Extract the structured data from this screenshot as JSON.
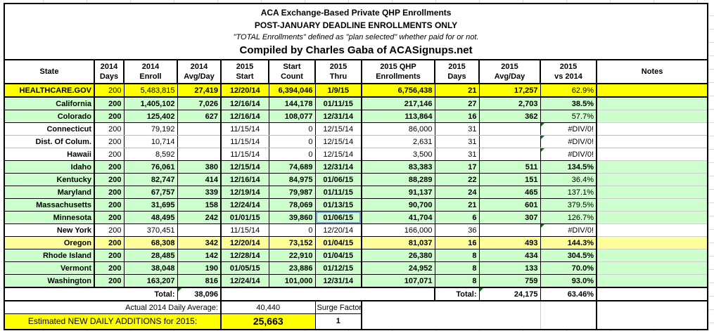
{
  "title": {
    "line1": "ACA Exchange-Based Private QHP Enrollments",
    "line2": "POST-JANUARY DEADLINE ENROLLMENTS ONLY",
    "line3": "\"TOTAL Enrollments\" defined as \"plan selected\" whether paid for or not.",
    "line4": "Compiled by Charles Gaba of ACASignups.net"
  },
  "colors": {
    "row_yellow": "#ffff00",
    "row_green": "#ccffcc",
    "row_light_yellow": "#ffff99",
    "selection_border": "#6fa8dc",
    "error_triangle": "#007b00"
  },
  "table": {
    "columns": [
      {
        "line1": "State",
        "line2": ""
      },
      {
        "line1": "2014",
        "line2": "Days"
      },
      {
        "line1": "2014",
        "line2": "Enroll"
      },
      {
        "line1": "2014",
        "line2": "Avg/Day"
      },
      {
        "line1": "2015",
        "line2": "Start"
      },
      {
        "line1": "Start",
        "line2": "Count"
      },
      {
        "line1": "2015",
        "line2": "Thru"
      },
      {
        "line1": "2015 QHP",
        "line2": "Enrollments"
      },
      {
        "line1": "2015",
        "line2": "Days"
      },
      {
        "line1": "2015",
        "line2": "Avg/Day"
      },
      {
        "line1": "2015",
        "line2": "vs 2014"
      },
      {
        "line1": "Notes",
        "line2": ""
      }
    ],
    "column_aligns": [
      "r",
      "r",
      "r",
      "r",
      "c",
      "r",
      "c",
      "r",
      "r",
      "r",
      "r",
      "l"
    ],
    "rows": [
      {
        "name": "healthcare-gov",
        "bg": "#ffff00",
        "thick_bottom": 1,
        "cells": [
          {
            "v": "HEALTHCARE.GOV",
            "b": 1
          },
          {
            "v": "200"
          },
          {
            "v": "5,483,815"
          },
          {
            "v": "27,419",
            "b": 1
          },
          {
            "v": "12/20/14",
            "b": 1
          },
          {
            "v": "6,394,046",
            "b": 1
          },
          {
            "v": "1/9/15",
            "b": 1
          },
          {
            "v": "6,756,438",
            "b": 1
          },
          {
            "v": "21",
            "b": 1
          },
          {
            "v": "17,257",
            "b": 1
          },
          {
            "v": "62.9%"
          },
          {
            "v": ""
          }
        ]
      },
      {
        "name": "california",
        "bg": "#ccffcc",
        "cells": [
          {
            "v": "California",
            "b": 1
          },
          {
            "v": "200",
            "b": 1
          },
          {
            "v": "1,405,102",
            "b": 1
          },
          {
            "v": "7,026",
            "b": 1
          },
          {
            "v": "12/16/14",
            "b": 1
          },
          {
            "v": "144,178",
            "b": 1
          },
          {
            "v": "01/11/15",
            "b": 1
          },
          {
            "v": "217,146",
            "b": 1
          },
          {
            "v": "27",
            "b": 1
          },
          {
            "v": "2,703",
            "b": 1
          },
          {
            "v": "38.5%",
            "b": 1
          },
          {
            "v": ""
          }
        ]
      },
      {
        "name": "colorado",
        "bg": "#ccffcc",
        "cells": [
          {
            "v": "Colorado",
            "b": 1
          },
          {
            "v": "200",
            "b": 1
          },
          {
            "v": "125,402",
            "b": 1
          },
          {
            "v": "627",
            "b": 1
          },
          {
            "v": "12/16/14",
            "b": 1
          },
          {
            "v": "108,077",
            "b": 1
          },
          {
            "v": "12/31/14",
            "b": 1
          },
          {
            "v": "113,864",
            "b": 1
          },
          {
            "v": "16",
            "b": 1
          },
          {
            "v": "362",
            "b": 1
          },
          {
            "v": "57.7%"
          },
          {
            "v": ""
          }
        ]
      },
      {
        "name": "connecticut",
        "bg": "#ffffff",
        "gray_bottom": 1,
        "cells": [
          {
            "v": "Connecticut",
            "b": 1
          },
          {
            "v": "200"
          },
          {
            "v": "79,192"
          },
          {
            "v": ""
          },
          {
            "v": "11/15/14"
          },
          {
            "v": "0"
          },
          {
            "v": "12/15/14"
          },
          {
            "v": "86,000"
          },
          {
            "v": "31"
          },
          {
            "v": ""
          },
          {
            "v": "#DIV/0!",
            "t": 1
          },
          {
            "v": ""
          }
        ]
      },
      {
        "name": "dist-of-colum",
        "bg": "#ffffff",
        "gray_bottom": 1,
        "cells": [
          {
            "v": "Dist. Of Colum.",
            "b": 1
          },
          {
            "v": "200"
          },
          {
            "v": "10,714"
          },
          {
            "v": ""
          },
          {
            "v": "11/15/14"
          },
          {
            "v": "0"
          },
          {
            "v": "12/15/14"
          },
          {
            "v": "2,631"
          },
          {
            "v": "31"
          },
          {
            "v": ""
          },
          {
            "v": "#DIV/0!",
            "t": 1
          },
          {
            "v": ""
          }
        ]
      },
      {
        "name": "hawaii",
        "bg": "#ffffff",
        "cells": [
          {
            "v": "Hawaii",
            "b": 1
          },
          {
            "v": "200"
          },
          {
            "v": "8,592"
          },
          {
            "v": ""
          },
          {
            "v": "11/15/14"
          },
          {
            "v": "0"
          },
          {
            "v": "12/15/14"
          },
          {
            "v": "3,500"
          },
          {
            "v": "31"
          },
          {
            "v": ""
          },
          {
            "v": "#DIV/0!",
            "t": 1
          },
          {
            "v": ""
          }
        ]
      },
      {
        "name": "idaho",
        "bg": "#ccffcc",
        "cells": [
          {
            "v": "Idaho",
            "b": 1
          },
          {
            "v": "200",
            "b": 1
          },
          {
            "v": "76,061",
            "b": 1
          },
          {
            "v": "380",
            "b": 1
          },
          {
            "v": "12/15/14",
            "b": 1
          },
          {
            "v": "74,689",
            "b": 1
          },
          {
            "v": "12/31/14",
            "b": 1
          },
          {
            "v": "83,383",
            "b": 1
          },
          {
            "v": "17",
            "b": 1
          },
          {
            "v": "511",
            "b": 1
          },
          {
            "v": "134.5%",
            "b": 1
          },
          {
            "v": ""
          }
        ]
      },
      {
        "name": "kentucky",
        "bg": "#ccffcc",
        "cells": [
          {
            "v": "Kentucky",
            "b": 1
          },
          {
            "v": "200",
            "b": 1
          },
          {
            "v": "82,747",
            "b": 1
          },
          {
            "v": "414",
            "b": 1
          },
          {
            "v": "12/16/14",
            "b": 1
          },
          {
            "v": "84,975",
            "b": 1
          },
          {
            "v": "01/06/15",
            "b": 1
          },
          {
            "v": "88,289",
            "b": 1
          },
          {
            "v": "22",
            "b": 1
          },
          {
            "v": "151",
            "b": 1
          },
          {
            "v": "36.4%"
          },
          {
            "v": ""
          }
        ]
      },
      {
        "name": "maryland",
        "bg": "#ccffcc",
        "cells": [
          {
            "v": "Maryland",
            "b": 1
          },
          {
            "v": "200",
            "b": 1
          },
          {
            "v": "67,757",
            "b": 1
          },
          {
            "v": "339",
            "b": 1
          },
          {
            "v": "12/19/14",
            "b": 1
          },
          {
            "v": "79,987",
            "b": 1
          },
          {
            "v": "01/11/15",
            "b": 1
          },
          {
            "v": "91,137",
            "b": 1
          },
          {
            "v": "24",
            "b": 1
          },
          {
            "v": "465",
            "b": 1
          },
          {
            "v": "137.1%"
          },
          {
            "v": ""
          }
        ]
      },
      {
        "name": "massachusetts",
        "bg": "#ccffcc",
        "cells": [
          {
            "v": "Massachusetts",
            "b": 1
          },
          {
            "v": "200",
            "b": 1
          },
          {
            "v": "31,695",
            "b": 1
          },
          {
            "v": "158",
            "b": 1
          },
          {
            "v": "12/24/14",
            "b": 1
          },
          {
            "v": "78,069",
            "b": 1
          },
          {
            "v": "01/13/15",
            "b": 1
          },
          {
            "v": "90,700",
            "b": 1
          },
          {
            "v": "21",
            "b": 1
          },
          {
            "v": "601",
            "b": 1
          },
          {
            "v": "379.5%"
          },
          {
            "v": ""
          }
        ]
      },
      {
        "name": "minnesota",
        "bg": "#ccffcc",
        "cells": [
          {
            "v": "Minnesota",
            "b": 1
          },
          {
            "v": "200",
            "b": 1
          },
          {
            "v": "48,495",
            "b": 1
          },
          {
            "v": "242",
            "b": 1
          },
          {
            "v": "01/01/15",
            "b": 1
          },
          {
            "v": "39,860",
            "b": 1
          },
          {
            "v": "01/06/15",
            "b": 1,
            "sel": 1
          },
          {
            "v": "41,704",
            "b": 1
          },
          {
            "v": "6",
            "b": 1
          },
          {
            "v": "307",
            "b": 1
          },
          {
            "v": "126.7%"
          },
          {
            "v": ""
          }
        ]
      },
      {
        "name": "new-york",
        "bg": "#ffffff",
        "cells": [
          {
            "v": "New York",
            "b": 1
          },
          {
            "v": "200"
          },
          {
            "v": "370,451"
          },
          {
            "v": ""
          },
          {
            "v": "11/15/14"
          },
          {
            "v": "0"
          },
          {
            "v": "12/20/14"
          },
          {
            "v": "166,000"
          },
          {
            "v": "36"
          },
          {
            "v": ""
          },
          {
            "v": "#DIV/0!",
            "t": 1
          },
          {
            "v": ""
          }
        ]
      },
      {
        "name": "oregon",
        "bg": "#ffff99",
        "cells": [
          {
            "v": "Oregon",
            "b": 1
          },
          {
            "v": "200",
            "b": 1
          },
          {
            "v": "68,308",
            "b": 1
          },
          {
            "v": "342",
            "b": 1
          },
          {
            "v": "12/20/14",
            "b": 1
          },
          {
            "v": "73,152",
            "b": 1
          },
          {
            "v": "01/04/15",
            "b": 1
          },
          {
            "v": "81,037",
            "b": 1
          },
          {
            "v": "16",
            "b": 1
          },
          {
            "v": "493",
            "b": 1
          },
          {
            "v": "144.3%",
            "b": 1
          },
          {
            "v": ""
          }
        ]
      },
      {
        "name": "rhode-island",
        "bg": "#ccffcc",
        "cells": [
          {
            "v": "Rhode Island",
            "b": 1
          },
          {
            "v": "200",
            "b": 1
          },
          {
            "v": "28,485",
            "b": 1
          },
          {
            "v": "142",
            "b": 1
          },
          {
            "v": "12/28/14",
            "b": 1
          },
          {
            "v": "22,910",
            "b": 1
          },
          {
            "v": "01/04/15",
            "b": 1
          },
          {
            "v": "26,380",
            "b": 1
          },
          {
            "v": "8",
            "b": 1
          },
          {
            "v": "434",
            "b": 1
          },
          {
            "v": "304.5%",
            "b": 1
          },
          {
            "v": ""
          }
        ]
      },
      {
        "name": "vermont",
        "bg": "#ccffcc",
        "cells": [
          {
            "v": "Vermont",
            "b": 1
          },
          {
            "v": "200",
            "b": 1
          },
          {
            "v": "38,048",
            "b": 1
          },
          {
            "v": "190",
            "b": 1
          },
          {
            "v": "01/05/15",
            "b": 1
          },
          {
            "v": "23,886",
            "b": 1
          },
          {
            "v": "01/12/15",
            "b": 1
          },
          {
            "v": "24,952",
            "b": 1
          },
          {
            "v": "8",
            "b": 1
          },
          {
            "v": "133",
            "b": 1
          },
          {
            "v": "70.0%",
            "b": 1
          },
          {
            "v": ""
          }
        ]
      },
      {
        "name": "washington",
        "bg": "#ccffcc",
        "cells": [
          {
            "v": "Washington",
            "b": 1
          },
          {
            "v": "200",
            "b": 1
          },
          {
            "v": "163,207",
            "b": 1
          },
          {
            "v": "816",
            "b": 1
          },
          {
            "v": "12/24/14",
            "b": 1
          },
          {
            "v": "101,000",
            "b": 1
          },
          {
            "v": "12/31/14",
            "b": 1
          },
          {
            "v": "107,071",
            "b": 1
          },
          {
            "v": "8",
            "b": 1
          },
          {
            "v": "759",
            "b": 1
          },
          {
            "v": "93.0%",
            "b": 1
          },
          {
            "v": ""
          }
        ]
      }
    ],
    "totals": {
      "label_2014": "Total:",
      "avg_2014": "38,096",
      "label_2015": "Total:",
      "avg_2015": "24,175",
      "vs_2014": "63.46%"
    }
  },
  "footer": {
    "actual_label": "Actual 2014 Daily Average:",
    "actual_value": "40,440",
    "surge_label": "Surge Factor:",
    "surge_value": "1",
    "estimated_label": "Estimated NEW DAILY ADDITIONS for 2015:",
    "estimated_value": "25,663"
  }
}
